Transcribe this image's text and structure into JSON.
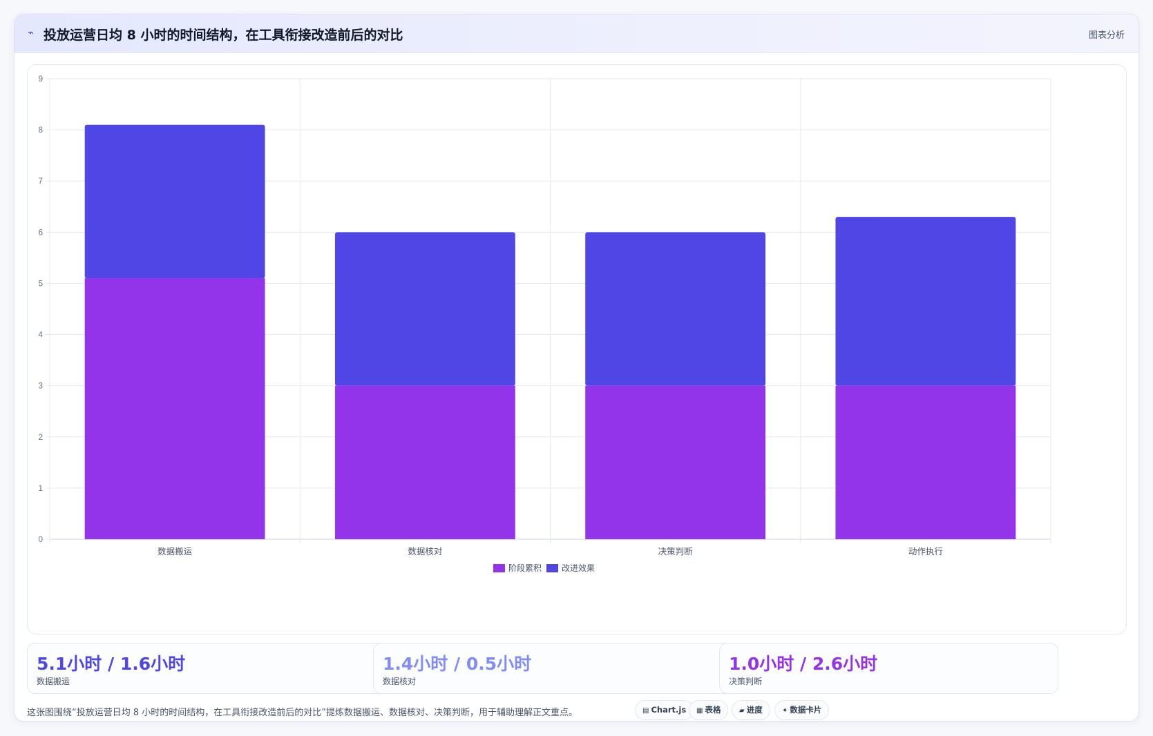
{
  "header": {
    "icon": "wave-icon",
    "title": "投放运营日均 8 小时的时间结构，在工具衔接改造前后的对比",
    "action_label": "图表分析"
  },
  "chart_data": {
    "type": "bar",
    "stacked": true,
    "categories": [
      "数据搬运",
      "数据核对",
      "决策判断",
      "动作执行"
    ],
    "series": [
      {
        "name": "阶段累积",
        "color": "#9333ea",
        "values": [
          5.1,
          3.0,
          3.0,
          3.0
        ]
      },
      {
        "name": "改进效果",
        "color": "#4f46e5",
        "values": [
          3.0,
          3.0,
          3.0,
          3.3
        ]
      }
    ],
    "ylim": [
      0,
      9
    ],
    "yticks": [
      "0",
      "1",
      "2",
      "3",
      "4",
      "5",
      "6",
      "7",
      "8",
      "9"
    ],
    "grid": true,
    "legend_position": "bottom"
  },
  "stats": [
    {
      "value": "5.1小时 / 1.6小时",
      "label": "数据搬运",
      "color": "#4f46e5"
    },
    {
      "value": "1.4小时 / 0.5小时",
      "label": "数据核对",
      "color": "#818cf8"
    },
    {
      "value": "1.0小时 / 2.6小时",
      "label": "决策判断",
      "color": "#9333ea"
    }
  ],
  "footer": {
    "note": "这张图围绕“投放运营日均 8 小时的时间结构，在工具衔接改造前后的对比”提炼数据搬运、数据核对、决策判断，用于辅助理解正文重点。",
    "chips": [
      {
        "icon": "chart-icon",
        "glyph": "▤",
        "label": "Chart.js"
      },
      {
        "icon": "table-icon",
        "glyph": "▦",
        "label": "表格"
      },
      {
        "icon": "progress-icon",
        "glyph": "▰",
        "label": "进度"
      },
      {
        "icon": "sparkle-icon",
        "glyph": "✦",
        "label": "数据卡片"
      }
    ]
  }
}
